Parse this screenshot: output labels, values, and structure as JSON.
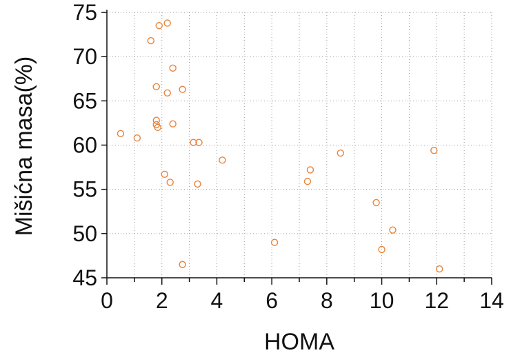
{
  "chart_data": {
    "type": "scatter",
    "title": "",
    "xlabel": "HOMA",
    "ylabel": "Mišićna masa(%)",
    "xlim": [
      0,
      14
    ],
    "ylim": [
      45,
      75
    ],
    "x_ticks": [
      0,
      2,
      4,
      6,
      8,
      10,
      12,
      14
    ],
    "y_ticks": [
      45,
      50,
      55,
      60,
      65,
      70,
      75
    ],
    "x_minor_step": 1,
    "y_minor_step": 5,
    "grid": "dotted",
    "marker": "open-circle",
    "marker_color": "#E8833A",
    "series": [
      {
        "points": [
          {
            "x": 0.5,
            "y": 61.3
          },
          {
            "x": 1.1,
            "y": 60.8
          },
          {
            "x": 1.6,
            "y": 71.8
          },
          {
            "x": 1.8,
            "y": 66.6
          },
          {
            "x": 1.8,
            "y": 62.8
          },
          {
            "x": 1.8,
            "y": 62.3
          },
          {
            "x": 1.85,
            "y": 62.0
          },
          {
            "x": 1.9,
            "y": 73.5
          },
          {
            "x": 2.1,
            "y": 56.7
          },
          {
            "x": 2.2,
            "y": 73.8
          },
          {
            "x": 2.2,
            "y": 65.9
          },
          {
            "x": 2.3,
            "y": 55.8
          },
          {
            "x": 2.4,
            "y": 68.7
          },
          {
            "x": 2.4,
            "y": 62.4
          },
          {
            "x": 2.75,
            "y": 66.3
          },
          {
            "x": 2.75,
            "y": 46.5
          },
          {
            "x": 3.15,
            "y": 60.3
          },
          {
            "x": 3.3,
            "y": 55.6
          },
          {
            "x": 3.35,
            "y": 60.3
          },
          {
            "x": 4.2,
            "y": 58.3
          },
          {
            "x": 6.1,
            "y": 49.0
          },
          {
            "x": 7.3,
            "y": 55.9
          },
          {
            "x": 7.4,
            "y": 57.2
          },
          {
            "x": 8.5,
            "y": 59.1
          },
          {
            "x": 9.8,
            "y": 53.5
          },
          {
            "x": 10.0,
            "y": 48.2
          },
          {
            "x": 10.4,
            "y": 50.4
          },
          {
            "x": 11.9,
            "y": 59.4
          },
          {
            "x": 12.1,
            "y": 46.0
          }
        ]
      }
    ]
  }
}
